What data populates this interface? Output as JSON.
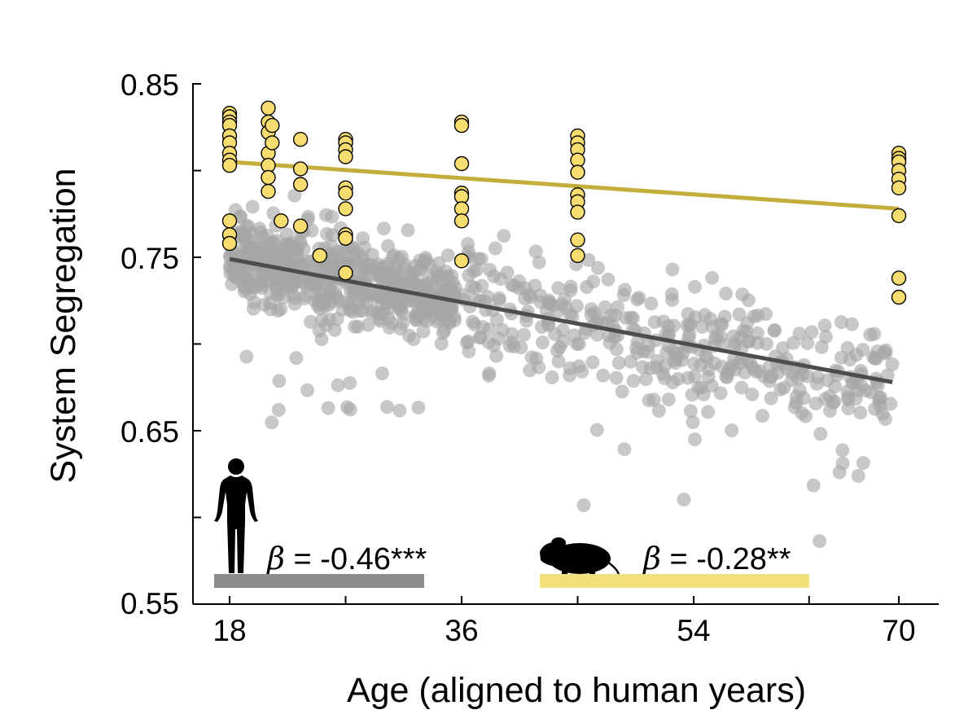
{
  "chart_data": {
    "type": "scatter",
    "title": "",
    "xlabel": "Age (aligned to human years)",
    "ylabel": "System Segregation",
    "xlim": [
      17,
      72.5
    ],
    "ylim": [
      0.55,
      0.85
    ],
    "x_tick_labels": [
      "18",
      "36",
      "54",
      "70"
    ],
    "x_tick_values": [
      18,
      36,
      54,
      70
    ],
    "x_minor_ticks": [
      27,
      45,
      63
    ],
    "y_tick_labels": [
      "0.85",
      "0.75",
      "0.65",
      "0.55"
    ],
    "y_tick_values": [
      0.85,
      0.75,
      0.65,
      0.55
    ],
    "y_minor_ticks": [
      0.8,
      0.7,
      0.6
    ],
    "grid": false,
    "series": [
      {
        "name": "Human",
        "color": "#a6a6a6",
        "marker": "filled-circle-transparent",
        "fit": {
          "x0": 18,
          "y0": 0.749,
          "x1": 69.5,
          "y1": 0.678,
          "color": "#4d4d4d"
        },
        "beta_label": "β = -0.46***",
        "legend_bar_color": "#8c8c8c",
        "icon": "human-silhouette-icon"
      },
      {
        "name": "Mouse",
        "color": "#f7dc6f",
        "marker": "filled-circle-black-edge",
        "fit": {
          "x0": 18,
          "y0": 0.805,
          "x1": 70,
          "y1": 0.778,
          "color": "#c4ad3a"
        },
        "beta_label": "β = -0.28**",
        "legend_bar_color": "#f2e07a",
        "icon": "mouse-silhouette-icon",
        "points": [
          [
            18,
            0.833
          ],
          [
            18,
            0.831
          ],
          [
            18,
            0.828
          ],
          [
            18,
            0.826
          ],
          [
            18,
            0.82
          ],
          [
            18,
            0.816
          ],
          [
            18,
            0.81
          ],
          [
            18,
            0.806
          ],
          [
            18,
            0.803
          ],
          [
            18,
            0.771
          ],
          [
            18,
            0.763
          ],
          [
            18,
            0.758
          ],
          [
            21,
            0.836
          ],
          [
            21,
            0.828
          ],
          [
            21,
            0.822
          ],
          [
            21,
            0.81
          ],
          [
            21,
            0.803
          ],
          [
            21,
            0.796
          ],
          [
            21,
            0.788
          ],
          [
            21.3,
            0.826
          ],
          [
            21.3,
            0.816
          ],
          [
            22,
            0.771
          ],
          [
            23.5,
            0.818
          ],
          [
            23.5,
            0.801
          ],
          [
            23.5,
            0.792
          ],
          [
            23.5,
            0.768
          ],
          [
            25,
            0.751
          ],
          [
            27,
            0.818
          ],
          [
            27,
            0.816
          ],
          [
            27,
            0.812
          ],
          [
            27,
            0.808
          ],
          [
            27,
            0.79
          ],
          [
            27,
            0.787
          ],
          [
            27,
            0.778
          ],
          [
            27,
            0.763
          ],
          [
            27,
            0.761
          ],
          [
            27,
            0.741
          ],
          [
            36,
            0.828
          ],
          [
            36,
            0.826
          ],
          [
            36,
            0.804
          ],
          [
            36,
            0.787
          ],
          [
            36,
            0.785
          ],
          [
            36,
            0.778
          ],
          [
            36,
            0.771
          ],
          [
            36,
            0.748
          ],
          [
            45,
            0.82
          ],
          [
            45,
            0.816
          ],
          [
            45,
            0.812
          ],
          [
            45,
            0.806
          ],
          [
            45,
            0.799
          ],
          [
            45,
            0.786
          ],
          [
            45,
            0.782
          ],
          [
            45,
            0.776
          ],
          [
            45,
            0.76
          ],
          [
            45,
            0.751
          ],
          [
            70,
            0.81
          ],
          [
            70,
            0.807
          ],
          [
            70,
            0.805
          ],
          [
            70,
            0.8
          ],
          [
            70,
            0.795
          ],
          [
            70,
            0.79
          ],
          [
            70,
            0.774
          ],
          [
            70,
            0.738
          ],
          [
            70,
            0.727
          ]
        ]
      }
    ]
  }
}
